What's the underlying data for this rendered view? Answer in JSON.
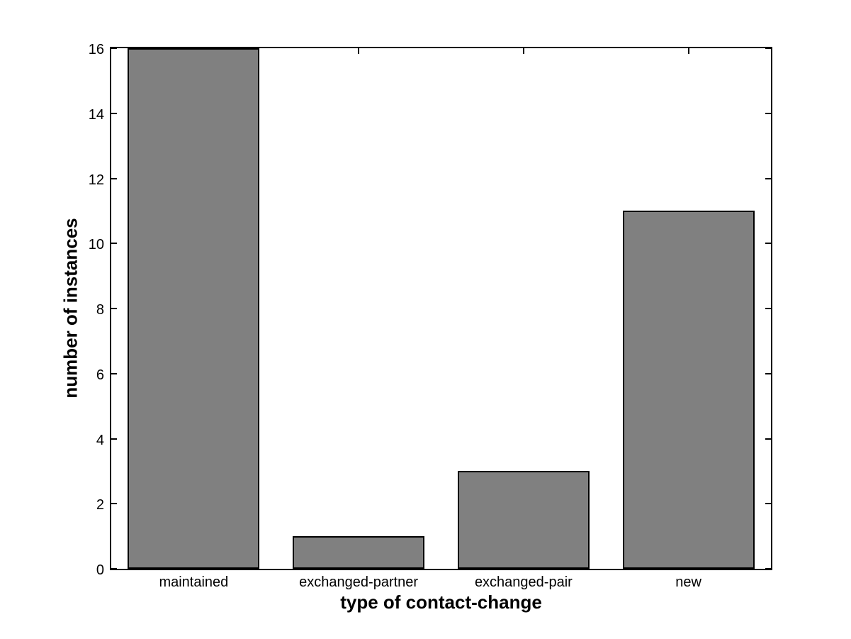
{
  "chart_data": {
    "type": "bar",
    "title": "",
    "xlabel": "type of contact-change",
    "ylabel": "number of instances",
    "categories": [
      "maintained",
      "exchanged-partner",
      "exchanged-pair",
      "new"
    ],
    "values": [
      16,
      1,
      3,
      11
    ],
    "ylim": [
      0,
      16
    ],
    "yticks": [
      0,
      2,
      4,
      6,
      8,
      10,
      12,
      14,
      16
    ],
    "bar_width_fraction": 0.8,
    "grid": false,
    "legend_position": "none",
    "colors": {
      "bar_fill": "#808080",
      "bar_edge": "#000000",
      "axis": "#000000",
      "background": "#ffffff",
      "text": "#000000"
    }
  }
}
